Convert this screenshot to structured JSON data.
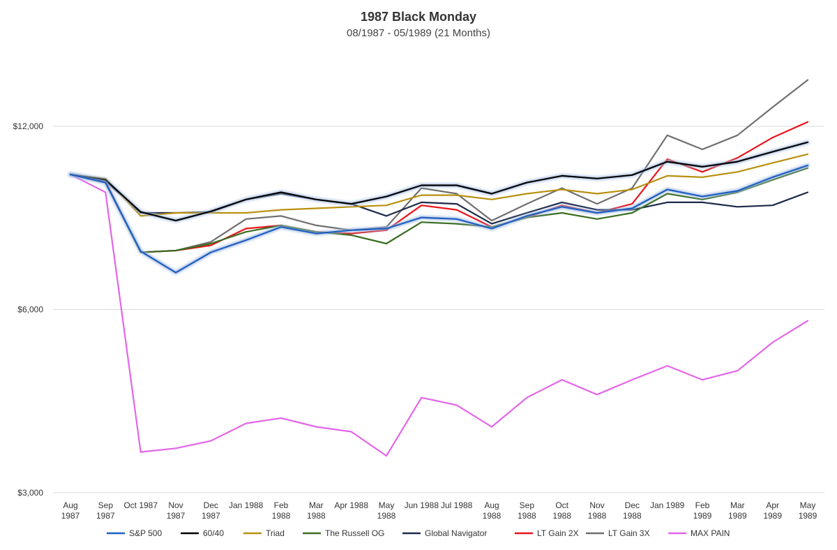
{
  "chart_data": {
    "type": "line",
    "title": "1987 Black Monday",
    "subtitle": "08/1987 - 05/1989 (21 Months)",
    "categories": [
      [
        "Aug",
        "1987"
      ],
      [
        "Sep",
        "1987"
      ],
      [
        "Oct 1987"
      ],
      [
        "Nov",
        "1987"
      ],
      [
        "Dec",
        "1987"
      ],
      [
        "Jan 1988"
      ],
      [
        "Feb",
        "1988"
      ],
      [
        "Mar",
        "1988"
      ],
      [
        "Apr 1988"
      ],
      [
        "May",
        "1988"
      ],
      [
        "Jun 1988"
      ],
      [
        "Jul 1988"
      ],
      [
        "Aug",
        "1988"
      ],
      [
        "Sep",
        "1988"
      ],
      [
        "Oct",
        "1988"
      ],
      [
        "Nov",
        "1988"
      ],
      [
        "Dec",
        "1988"
      ],
      [
        "Jan 1989"
      ],
      [
        "Feb",
        "1989"
      ],
      [
        "Mar",
        "1989"
      ],
      [
        "Apr",
        "1989"
      ],
      [
        "May",
        "1989"
      ]
    ],
    "y_scale": "log",
    "ylim": [
      3000,
      15000
    ],
    "yticks": [
      {
        "value": 3000,
        "label": "$3,000"
      },
      {
        "value": 6000,
        "label": "$6,000"
      },
      {
        "value": 12000,
        "label": "$12,000"
      }
    ],
    "grid": true,
    "legend_position": "bottom",
    "series": [
      {
        "name": "S&P 500",
        "color": "#1f5fbf",
        "glow": true,
        "values": [
          10000,
          9700,
          7480,
          6900,
          7450,
          7800,
          8200,
          8000,
          8100,
          8150,
          8500,
          8450,
          8150,
          8550,
          8850,
          8650,
          8800,
          9450,
          9200,
          9400,
          9900,
          10350
        ]
      },
      {
        "name": "60/40",
        "color": "#000000",
        "glow": true,
        "values": [
          10000,
          9800,
          8680,
          8400,
          8700,
          9100,
          9350,
          9100,
          8950,
          9200,
          9600,
          9600,
          9300,
          9700,
          9950,
          9850,
          9980,
          10500,
          10300,
          10500,
          10900,
          11300
        ]
      },
      {
        "name": "Triad",
        "color": "#b8900f",
        "glow": false,
        "values": [
          10000,
          9850,
          8550,
          8650,
          8650,
          8650,
          8750,
          8800,
          8850,
          8900,
          9250,
          9250,
          9100,
          9300,
          9450,
          9300,
          9450,
          9950,
          9900,
          10100,
          10450,
          10800
        ]
      },
      {
        "name": "The Russell OG",
        "color": "#3b6e22",
        "glow": false,
        "values": [
          10000,
          9700,
          7450,
          7500,
          7700,
          8050,
          8250,
          8050,
          7950,
          7700,
          8350,
          8300,
          8200,
          8500,
          8650,
          8450,
          8650,
          9300,
          9100,
          9350,
          9800,
          10250
        ]
      },
      {
        "name": "Global Navigator",
        "color": "#1c2a48",
        "glow": false,
        "values": [
          10000,
          9750,
          8650,
          8650,
          8680,
          9100,
          9300,
          9100,
          8950,
          8550,
          9000,
          8950,
          8300,
          8650,
          9000,
          8750,
          8750,
          9000,
          9000,
          8850,
          8900,
          9350
        ]
      },
      {
        "name": "LT Gain 2X",
        "color": "#e8141a",
        "glow": false,
        "values": [
          10000,
          9750,
          7450,
          7500,
          7650,
          8150,
          8250,
          8050,
          8000,
          8100,
          8900,
          8750,
          8200,
          8500,
          8900,
          8650,
          8950,
          10600,
          10100,
          10650,
          11500,
          12200
        ]
      },
      {
        "name": "LT Gain 3X",
        "color": "#6f6f6f",
        "glow": false,
        "values": [
          10000,
          9700,
          7450,
          7500,
          7750,
          8450,
          8550,
          8250,
          8100,
          8200,
          9500,
          9300,
          8400,
          8950,
          9500,
          8950,
          9500,
          11600,
          11000,
          11600,
          12900,
          14300
        ]
      },
      {
        "name": "MAX PAIN",
        "color": "#e365e8",
        "glow": false,
        "values": [
          10000,
          9350,
          3500,
          3550,
          3650,
          3900,
          3980,
          3850,
          3780,
          3450,
          4300,
          4180,
          3850,
          4300,
          4600,
          4350,
          4600,
          4850,
          4600,
          4760,
          5300,
          5750
        ]
      }
    ]
  }
}
